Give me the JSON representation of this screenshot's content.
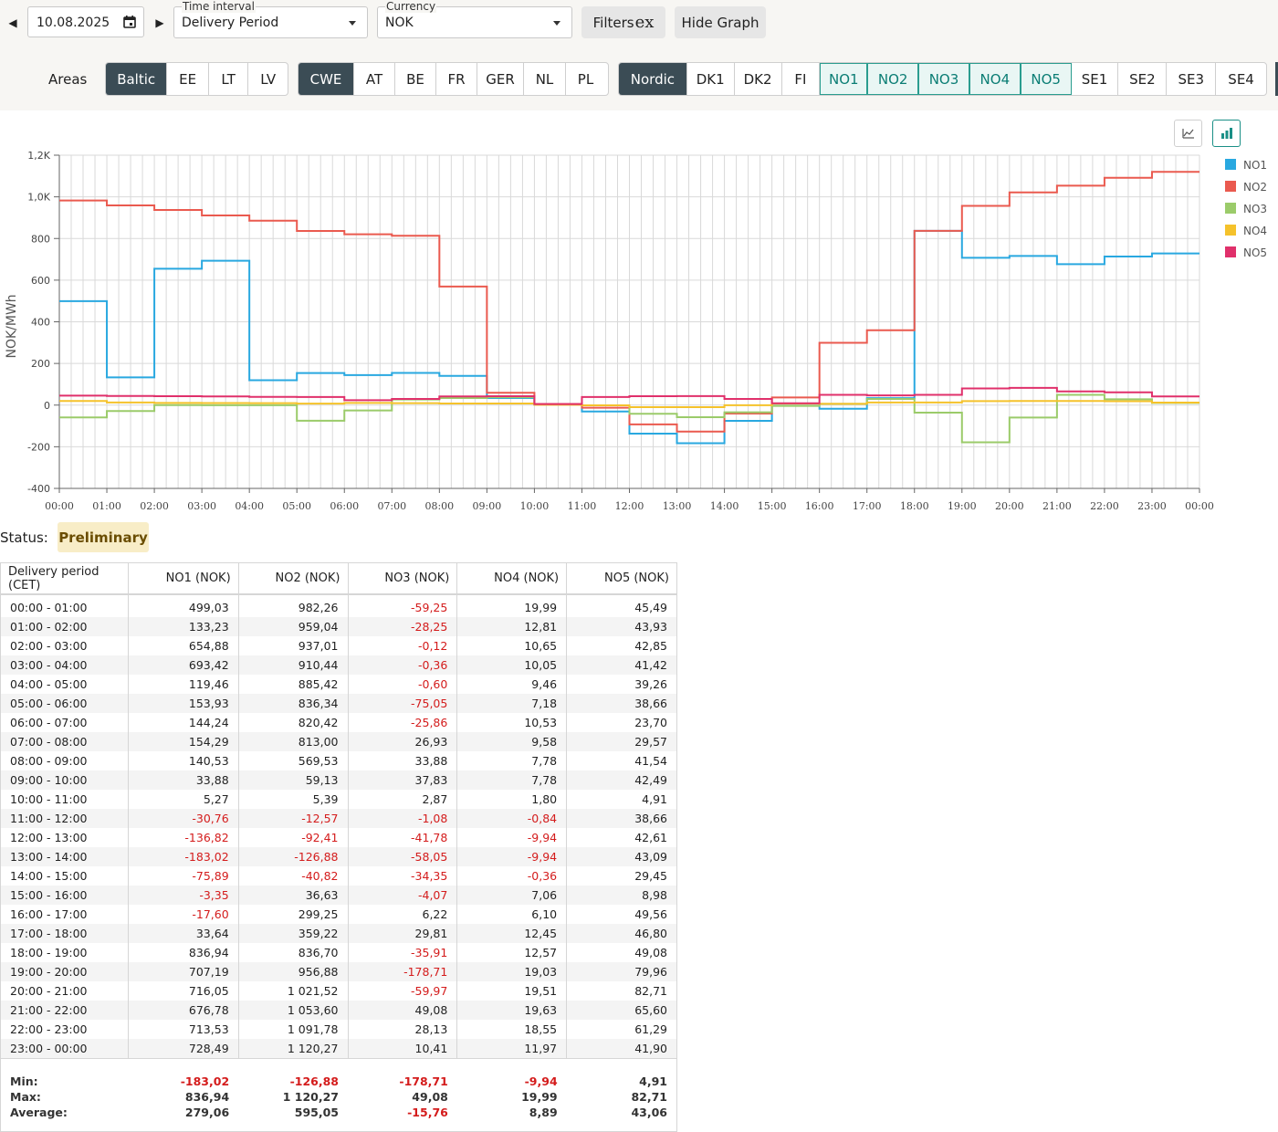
{
  "date": "10.08.2025",
  "time_interval": {
    "label": "Time interval",
    "value": "Delivery Period"
  },
  "currency": {
    "label": "Currency",
    "value": "NOK"
  },
  "buttons": {
    "filters": "Filters",
    "hide_graph": "Hide Graph"
  },
  "areas_label": "Areas",
  "area_groups": [
    [
      "Baltic",
      "EE",
      "LT",
      "LV"
    ],
    [
      "CWE",
      "AT",
      "BE",
      "FR",
      "GER",
      "NL",
      "PL"
    ],
    [
      "Nordic",
      "DK1",
      "DK2",
      "FI",
      "NO1",
      "NO2",
      "NO3",
      "NO4",
      "NO5",
      "SE1",
      "SE2",
      "SE3",
      "SE4"
    ]
  ],
  "selected_areas": [
    "NO1",
    "NO2",
    "NO3",
    "NO4",
    "NO5"
  ],
  "chart_data": {
    "type": "line",
    "step": true,
    "ylabel": "NOK/MWh",
    "ylim": [
      -400,
      1200
    ],
    "yticks": [
      "-400",
      "-200",
      "0",
      "200",
      "400",
      "600",
      "800",
      "1,0K",
      "1,2K"
    ],
    "xticks": [
      "00:00",
      "01:00",
      "02:00",
      "03:00",
      "04:00",
      "05:00",
      "06:00",
      "07:00",
      "08:00",
      "09:00",
      "10:00",
      "11:00",
      "12:00",
      "13:00",
      "14:00",
      "15:00",
      "16:00",
      "17:00",
      "18:00",
      "19:00",
      "20:00",
      "21:00",
      "22:00",
      "23:00",
      "00:00"
    ],
    "grid": true,
    "legend": "right",
    "series": [
      {
        "name": "NO1",
        "color": "#29a8e0",
        "values": [
          499.03,
          133.23,
          654.88,
          693.42,
          119.46,
          153.93,
          144.24,
          154.29,
          140.53,
          33.88,
          5.27,
          -30.76,
          -136.82,
          -183.02,
          -75.89,
          -3.35,
          -17.6,
          33.64,
          836.94,
          707.19,
          716.05,
          676.78,
          713.53,
          728.49
        ]
      },
      {
        "name": "NO2",
        "color": "#ea5a4f",
        "values": [
          982.26,
          959.04,
          937.01,
          910.44,
          885.42,
          836.34,
          820.42,
          813.0,
          569.53,
          59.13,
          5.39,
          -12.57,
          -92.41,
          -126.88,
          -40.82,
          36.63,
          299.25,
          359.22,
          836.7,
          956.88,
          1021.52,
          1053.6,
          1091.78,
          1120.27
        ]
      },
      {
        "name": "NO3",
        "color": "#9bcb6a",
        "values": [
          -59.25,
          -28.25,
          -0.12,
          -0.36,
          -0.6,
          -75.05,
          -25.86,
          26.93,
          33.88,
          37.83,
          2.87,
          -1.08,
          -41.78,
          -58.05,
          -34.35,
          -4.07,
          6.22,
          29.81,
          -35.91,
          -178.71,
          -59.97,
          49.08,
          28.13,
          10.41
        ]
      },
      {
        "name": "NO4",
        "color": "#f5c22b",
        "values": [
          19.99,
          12.81,
          10.65,
          10.05,
          9.46,
          7.18,
          10.53,
          9.58,
          7.78,
          7.78,
          1.8,
          -0.84,
          -9.94,
          -9.94,
          -0.36,
          7.06,
          6.1,
          12.45,
          12.57,
          19.03,
          19.51,
          19.63,
          18.55,
          11.97
        ]
      },
      {
        "name": "NO5",
        "color": "#e0306b",
        "values": [
          45.49,
          43.93,
          42.85,
          41.42,
          39.26,
          38.66,
          23.7,
          29.57,
          41.54,
          42.49,
          4.91,
          38.66,
          42.61,
          43.09,
          29.45,
          8.98,
          49.56,
          46.8,
          49.08,
          79.96,
          82.71,
          65.6,
          61.29,
          41.9
        ]
      }
    ]
  },
  "status": {
    "label": "Status:",
    "value": "Preliminary"
  },
  "table": {
    "headers": [
      "Delivery period (CET)",
      "NO1 (NOK)",
      "NO2 (NOK)",
      "NO3 (NOK)",
      "NO4 (NOK)",
      "NO5 (NOK)"
    ],
    "rows": [
      [
        "00:00 - 01:00",
        "499,03",
        "982,26",
        "-59,25",
        "19,99",
        "45,49"
      ],
      [
        "01:00 - 02:00",
        "133,23",
        "959,04",
        "-28,25",
        "12,81",
        "43,93"
      ],
      [
        "02:00 - 03:00",
        "654,88",
        "937,01",
        "-0,12",
        "10,65",
        "42,85"
      ],
      [
        "03:00 - 04:00",
        "693,42",
        "910,44",
        "-0,36",
        "10,05",
        "41,42"
      ],
      [
        "04:00 - 05:00",
        "119,46",
        "885,42",
        "-0,60",
        "9,46",
        "39,26"
      ],
      [
        "05:00 - 06:00",
        "153,93",
        "836,34",
        "-75,05",
        "7,18",
        "38,66"
      ],
      [
        "06:00 - 07:00",
        "144,24",
        "820,42",
        "-25,86",
        "10,53",
        "23,70"
      ],
      [
        "07:00 - 08:00",
        "154,29",
        "813,00",
        "26,93",
        "9,58",
        "29,57"
      ],
      [
        "08:00 - 09:00",
        "140,53",
        "569,53",
        "33,88",
        "7,78",
        "41,54"
      ],
      [
        "09:00 - 10:00",
        "33,88",
        "59,13",
        "37,83",
        "7,78",
        "42,49"
      ],
      [
        "10:00 - 11:00",
        "5,27",
        "5,39",
        "2,87",
        "1,80",
        "4,91"
      ],
      [
        "11:00 - 12:00",
        "-30,76",
        "-12,57",
        "-1,08",
        "-0,84",
        "38,66"
      ],
      [
        "12:00 - 13:00",
        "-136,82",
        "-92,41",
        "-41,78",
        "-9,94",
        "42,61"
      ],
      [
        "13:00 - 14:00",
        "-183,02",
        "-126,88",
        "-58,05",
        "-9,94",
        "43,09"
      ],
      [
        "14:00 - 15:00",
        "-75,89",
        "-40,82",
        "-34,35",
        "-0,36",
        "29,45"
      ],
      [
        "15:00 - 16:00",
        "-3,35",
        "36,63",
        "-4,07",
        "7,06",
        "8,98"
      ],
      [
        "16:00 - 17:00",
        "-17,60",
        "299,25",
        "6,22",
        "6,10",
        "49,56"
      ],
      [
        "17:00 - 18:00",
        "33,64",
        "359,22",
        "29,81",
        "12,45",
        "46,80"
      ],
      [
        "18:00 - 19:00",
        "836,94",
        "836,70",
        "-35,91",
        "12,57",
        "49,08"
      ],
      [
        "19:00 - 20:00",
        "707,19",
        "956,88",
        "-178,71",
        "19,03",
        "79,96"
      ],
      [
        "20:00 - 21:00",
        "716,05",
        "1 021,52",
        "-59,97",
        "19,51",
        "82,71"
      ],
      [
        "21:00 - 22:00",
        "676,78",
        "1 053,60",
        "49,08",
        "19,63",
        "65,60"
      ],
      [
        "22:00 - 23:00",
        "713,53",
        "1 091,78",
        "28,13",
        "18,55",
        "61,29"
      ],
      [
        "23:00 - 00:00",
        "728,49",
        "1 120,27",
        "10,41",
        "11,97",
        "41,90"
      ]
    ],
    "footer": [
      [
        "Min:",
        "-183,02",
        "-126,88",
        "-178,71",
        "-9,94",
        "4,91"
      ],
      [
        "Max:",
        "836,94",
        "1 120,27",
        "49,08",
        "19,99",
        "82,71"
      ],
      [
        "Average:",
        "279,06",
        "595,05",
        "-15,76",
        "8,89",
        "43,06"
      ]
    ]
  }
}
